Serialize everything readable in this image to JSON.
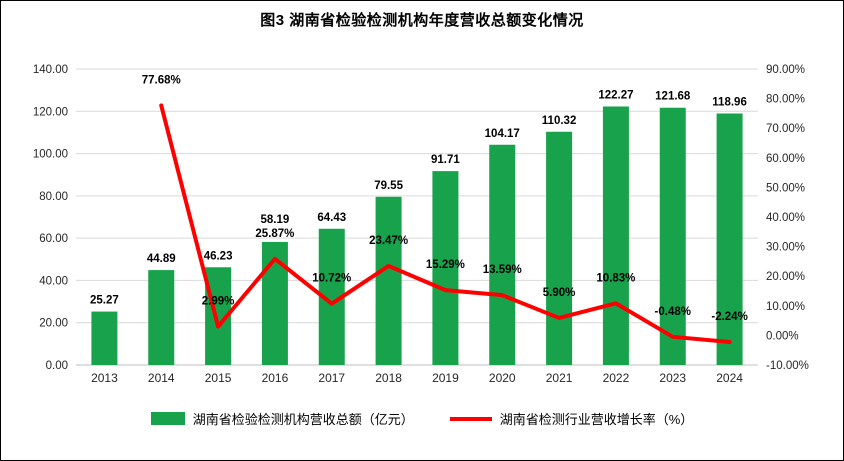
{
  "chart_data": {
    "type": "bar",
    "subtype": "combo-bar-line",
    "title": "图3 湖南省检验检测机构年度营收总额变化情况",
    "categories": [
      "2013",
      "2014",
      "2015",
      "2016",
      "2017",
      "2018",
      "2019",
      "2020",
      "2021",
      "2022",
      "2023",
      "2024"
    ],
    "series": [
      {
        "name": "湖南省检验检测机构营收总额（亿元）",
        "type": "bar",
        "color": "#18A24C",
        "axis": "left",
        "values": [
          25.27,
          44.89,
          46.23,
          58.19,
          64.43,
          79.55,
          91.71,
          104.17,
          110.32,
          122.27,
          121.68,
          118.96
        ]
      },
      {
        "name": "湖南省检测行业营收增长率（%）",
        "type": "line",
        "color": "#FF0000",
        "axis": "right",
        "values": [
          null,
          77.68,
          2.99,
          25.87,
          10.72,
          23.47,
          15.29,
          13.59,
          5.9,
          10.83,
          -0.48,
          -2.24
        ]
      }
    ],
    "left_axis": {
      "min": 0,
      "max": 140,
      "step": 20,
      "decimals": 2
    },
    "right_axis": {
      "min": -10,
      "max": 90,
      "step": 10,
      "decimals": 2,
      "suffix": "%"
    },
    "grid": true,
    "legend_position": "bottom",
    "colors": {
      "grid": "#D9D9D9",
      "axis_line": "#BFBFBF",
      "axis_text": "#262626",
      "label_text": "#000000"
    }
  }
}
